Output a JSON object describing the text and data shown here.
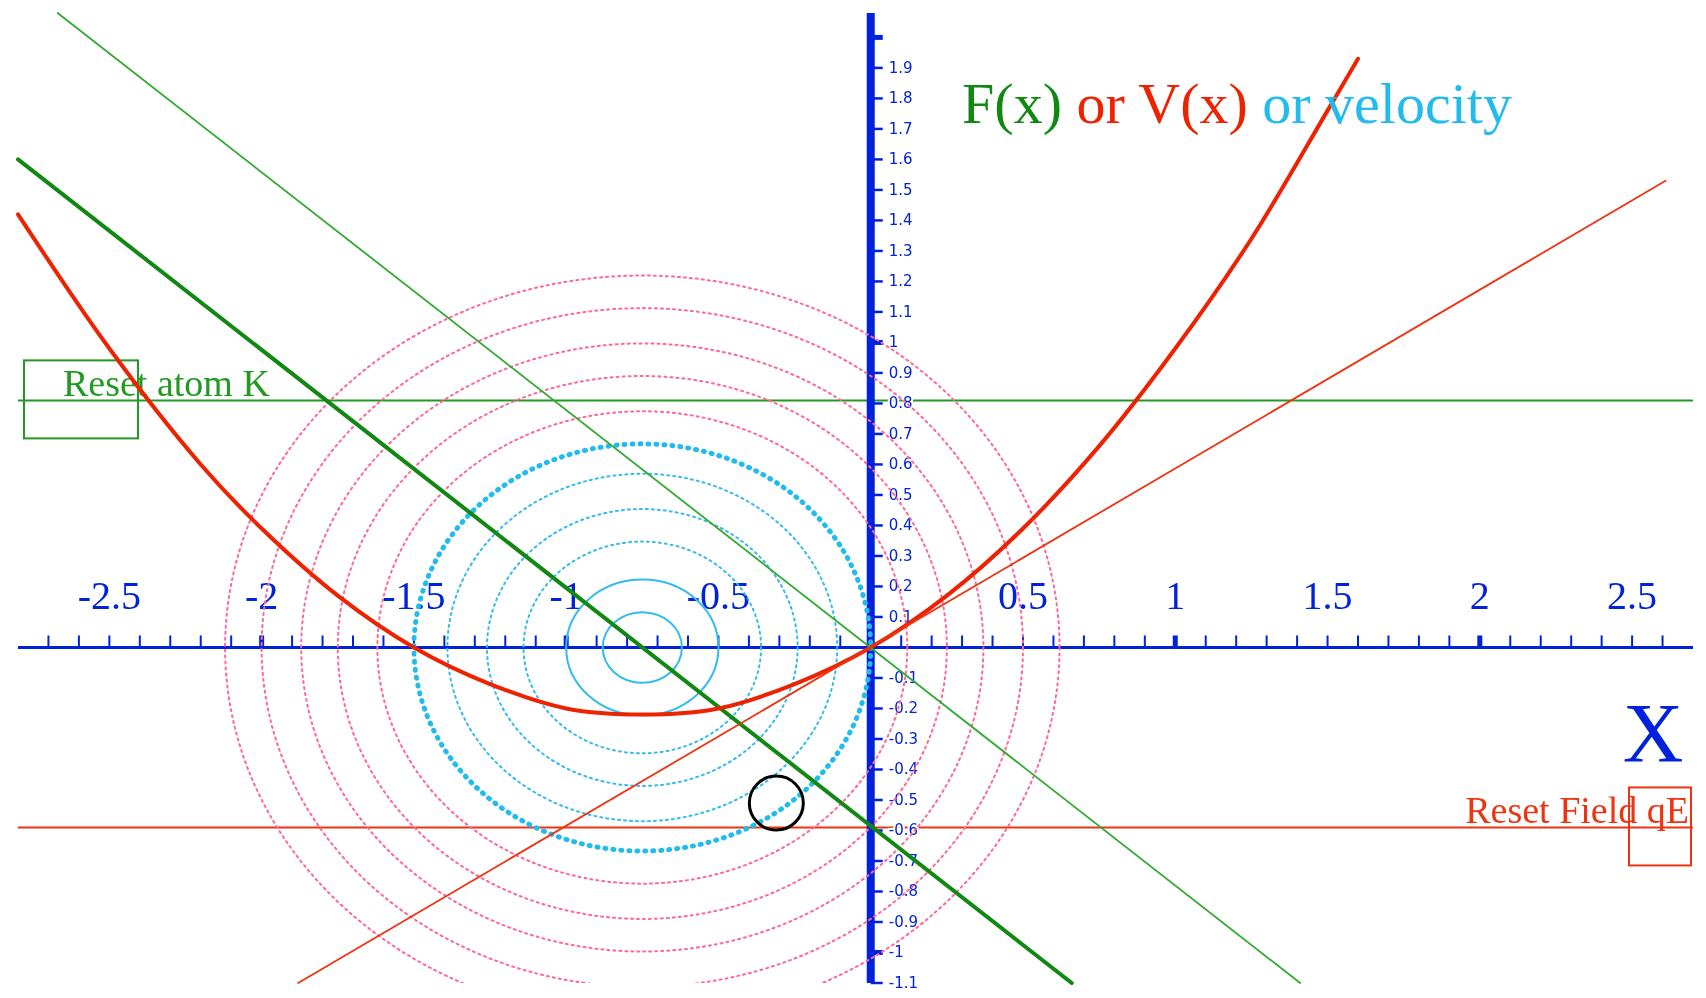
{
  "chart_data": {
    "type": "line",
    "xlabel": "X",
    "annotations": [
      "or",
      "velocity"
    ],
    "legend": "top",
    "xlim": [
      -2.8,
      2.7
    ],
    "ylim": [
      -1.1,
      2.08
    ],
    "xticks": [
      {
        "value": -2.7,
        "label": null
      },
      {
        "value": -2.6,
        "label": null
      },
      {
        "value": -2.5,
        "label": "-2.5"
      },
      {
        "value": -2.4,
        "label": null
      },
      {
        "value": -2.3,
        "label": null
      },
      {
        "value": -2.2,
        "label": null
      },
      {
        "value": -2.1,
        "label": null
      },
      {
        "value": -2,
        "label": "-2"
      },
      {
        "value": -1.9,
        "label": null
      },
      {
        "value": -1.8,
        "label": null
      },
      {
        "value": -1.7,
        "label": null
      },
      {
        "value": -1.6,
        "label": null
      },
      {
        "value": -1.5,
        "label": "-1.5"
      },
      {
        "value": -1.4,
        "label": null
      },
      {
        "value": -1.3,
        "label": null
      },
      {
        "value": -1.2,
        "label": null
      },
      {
        "value": -1.1,
        "label": null
      },
      {
        "value": -1,
        "label": "-1"
      },
      {
        "value": -0.9,
        "label": null
      },
      {
        "value": -0.8,
        "label": null
      },
      {
        "value": -0.7,
        "label": null
      },
      {
        "value": -0.6,
        "label": null
      },
      {
        "value": -0.5,
        "label": "-0.5"
      },
      {
        "value": -0.4,
        "label": null
      },
      {
        "value": -0.3,
        "label": null
      },
      {
        "value": -0.2,
        "label": null
      },
      {
        "value": -0.1,
        "label": null
      },
      {
        "value": 0.1,
        "label": null
      },
      {
        "value": 0.2,
        "label": null
      },
      {
        "value": 0.3,
        "label": null
      },
      {
        "value": 0.4,
        "label": null
      },
      {
        "value": 0.5,
        "label": "0.5"
      },
      {
        "value": 0.6,
        "label": null
      },
      {
        "value": 0.7,
        "label": null
      },
      {
        "value": 0.8,
        "label": null
      },
      {
        "value": 0.9,
        "label": null
      },
      {
        "value": 1,
        "label": "1"
      },
      {
        "value": 1.1,
        "label": null
      },
      {
        "value": 1.2,
        "label": null
      },
      {
        "value": 1.3,
        "label": null
      },
      {
        "value": 1.4,
        "label": null
      },
      {
        "value": 1.5,
        "label": "1.5"
      },
      {
        "value": 1.6,
        "label": null
      },
      {
        "value": 1.7,
        "label": null
      },
      {
        "value": 1.8,
        "label": null
      },
      {
        "value": 1.9,
        "label": null
      },
      {
        "value": 2,
        "label": "2"
      },
      {
        "value": 2.1,
        "label": null
      },
      {
        "value": 2.2,
        "label": null
      },
      {
        "value": 2.3,
        "label": null
      },
      {
        "value": 2.4,
        "label": null
      },
      {
        "value": 2.5,
        "label": "2.5"
      },
      {
        "value": 2.6,
        "label": null
      }
    ],
    "yticks": [
      {
        "value": -1.1,
        "label": "-1.1"
      },
      {
        "value": -1,
        "label": "-1"
      },
      {
        "value": -0.9,
        "label": "-0.9"
      },
      {
        "value": -0.8,
        "label": "-0.8"
      },
      {
        "value": -0.7,
        "label": "-0.7"
      },
      {
        "value": -0.6,
        "label": "-0.6"
      },
      {
        "value": -0.5,
        "label": "-0.5"
      },
      {
        "value": -0.4,
        "label": "-0.4"
      },
      {
        "value": -0.3,
        "label": "-0.3"
      },
      {
        "value": -0.2,
        "label": "-0.2"
      },
      {
        "value": -0.1,
        "label": "-0.1"
      },
      {
        "value": 0.1,
        "label": "0.1"
      },
      {
        "value": 0.2,
        "label": "0.2"
      },
      {
        "value": 0.3,
        "label": "0.3"
      },
      {
        "value": 0.4,
        "label": "0.4"
      },
      {
        "value": 0.5,
        "label": "0.5"
      },
      {
        "value": 0.6,
        "label": "0.6"
      },
      {
        "value": 0.7,
        "label": "0.7"
      },
      {
        "value": 0.8,
        "label": "0.8"
      },
      {
        "value": 0.9,
        "label": "0.9"
      },
      {
        "value": 1,
        "label": "1"
      },
      {
        "value": 1.1,
        "label": "1.1"
      },
      {
        "value": 1.2,
        "label": "1.2"
      },
      {
        "value": 1.3,
        "label": "1.3"
      },
      {
        "value": 1.4,
        "label": "1.4"
      },
      {
        "value": 1.5,
        "label": "1.5"
      },
      {
        "value": 1.6,
        "label": "1.6"
      },
      {
        "value": 1.7,
        "label": "1.7"
      },
      {
        "value": 1.8,
        "label": "1.8"
      },
      {
        "value": 1.9,
        "label": "1.9"
      },
      {
        "value": 2,
        "label": null
      }
    ],
    "ref_lines": [
      {
        "axis": "y",
        "value": 0.81,
        "label": "Reset atom K",
        "color": "#229922"
      },
      {
        "axis": "y",
        "value": -0.59,
        "label": "Reset Field qE",
        "color": "#ee3311"
      }
    ],
    "series": [
      {
        "name": "F(x)",
        "line_style": "solid",
        "color": "#118811",
        "x": [
          -2.8,
          0.66
        ],
        "values": [
          1.6,
          -1.1
        ]
      },
      {
        "name": "V(x)",
        "line_style": "solid",
        "color": "#ee2200",
        "x": [
          -2.8,
          -2.5,
          -2.2,
          -2,
          -1.75,
          -1.5,
          -1.25,
          -1,
          -0.75,
          -0.5,
          -0.25,
          0,
          0.25,
          0.5,
          0.75,
          1,
          1.25,
          1.5,
          1.6
        ],
        "values": [
          1.42,
          0.98,
          0.6,
          0.39,
          0.17,
          0,
          -0.12,
          -0.2,
          -0.22,
          -0.2,
          -0.12,
          0,
          0.17,
          0.39,
          0.66,
          0.98,
          1.34,
          1.76,
          1.93
        ]
      },
      {
        "line_style": "solid",
        "color": "#33aa33",
        "x": [
          -2.67,
          1.41
        ],
        "values": [
          2.08,
          -1.1
        ]
      },
      {
        "line_style": "solid",
        "color": "#ee3311",
        "x": [
          -1.88,
          2.61
        ],
        "values": [
          -1.1,
          1.53
        ]
      },
      {
        "type": "scatter",
        "marker": "circle",
        "color": "#000000",
        "x": [
          -0.31
        ],
        "values": [
          -0.51
        ]
      }
    ]
  }
}
